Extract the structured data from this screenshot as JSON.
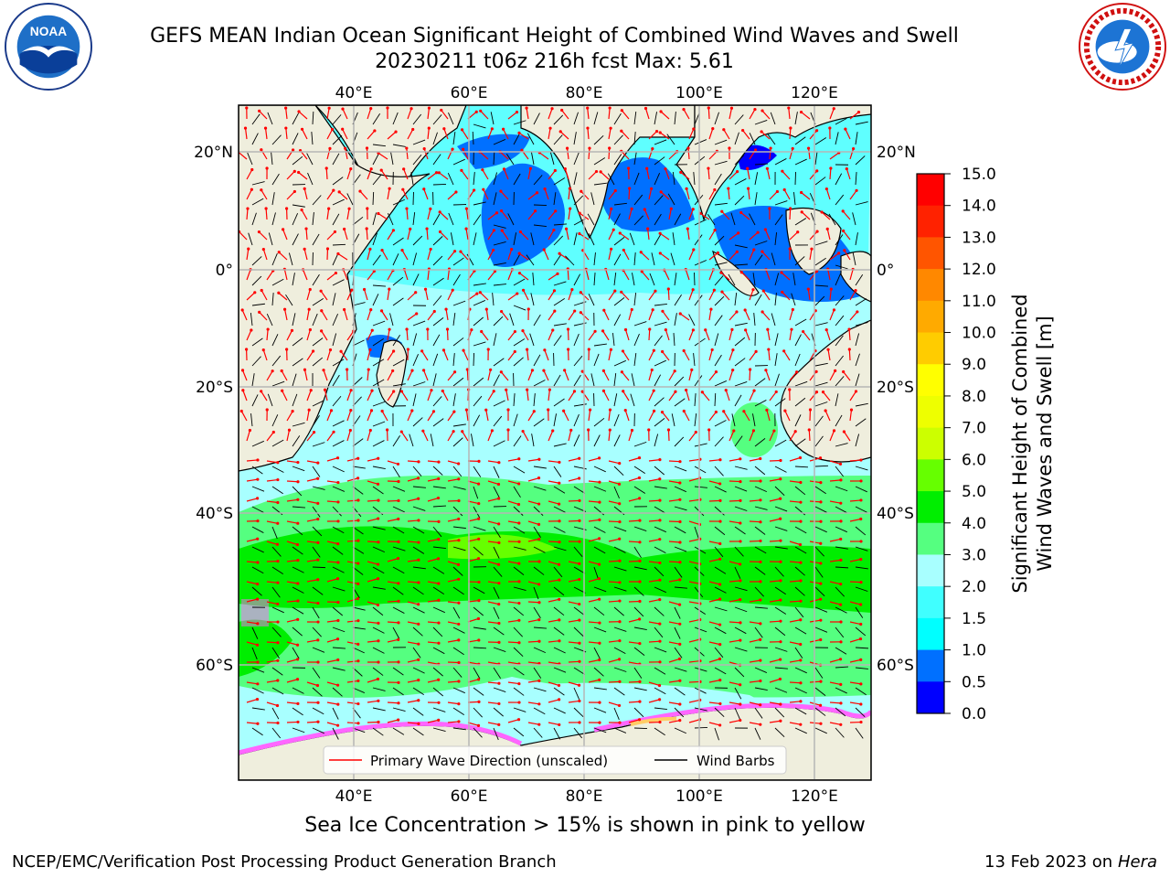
{
  "title": {
    "line1": "GEFS MEAN Indian Ocean Significant Height of Combined Wind Waves and Swell",
    "line2": "20230211 t06z 216h fcst   Max: 5.61"
  },
  "map": {
    "region": "Indian Ocean",
    "lon_labels": [
      "40°E",
      "60°E",
      "80°E",
      "100°E",
      "120°E"
    ],
    "lat_labels": [
      "20°N",
      "0°",
      "20°S",
      "40°S",
      "60°S"
    ],
    "land_color": "#efeedd",
    "ice_colors": [
      "#ff66ff",
      "#ff3399",
      "#ffcc66",
      "#ffff00"
    ]
  },
  "legend": {
    "primary_wave": "Primary Wave Direction (unscaled)",
    "wind_barbs": "Wind Barbs",
    "wave_color": "#ff0000",
    "barb_color": "#000000"
  },
  "colorbar": {
    "label_line1": "Significant Height of Combined",
    "label_line2": "Wind Waves and Swell [m]",
    "ticks": [
      "0.0",
      "0.5",
      "1.0",
      "1.5",
      "2.0",
      "3.0",
      "4.0",
      "5.0",
      "6.0",
      "7.0",
      "8.0",
      "9.0",
      "10.0",
      "11.0",
      "12.0",
      "13.0",
      "14.0",
      "15.0"
    ],
    "colors": [
      "#0000ff",
      "#0070ff",
      "#00ffff",
      "#40ffff",
      "#a8ffff",
      "#55ff80",
      "#00ee00",
      "#66ff00",
      "#ccff00",
      "#eeff00",
      "#ffff00",
      "#ffcc00",
      "#ffaa00",
      "#ff8800",
      "#ff5500",
      "#ff2200",
      "#ff0000"
    ]
  },
  "ice_note": "Sea Ice Concentration > 15% is shown in pink to yellow",
  "credit": "NCEP/EMC/Verification Post Processing Product Generation Branch",
  "date_text": "13 Feb 2023 on",
  "host": "Hera"
}
